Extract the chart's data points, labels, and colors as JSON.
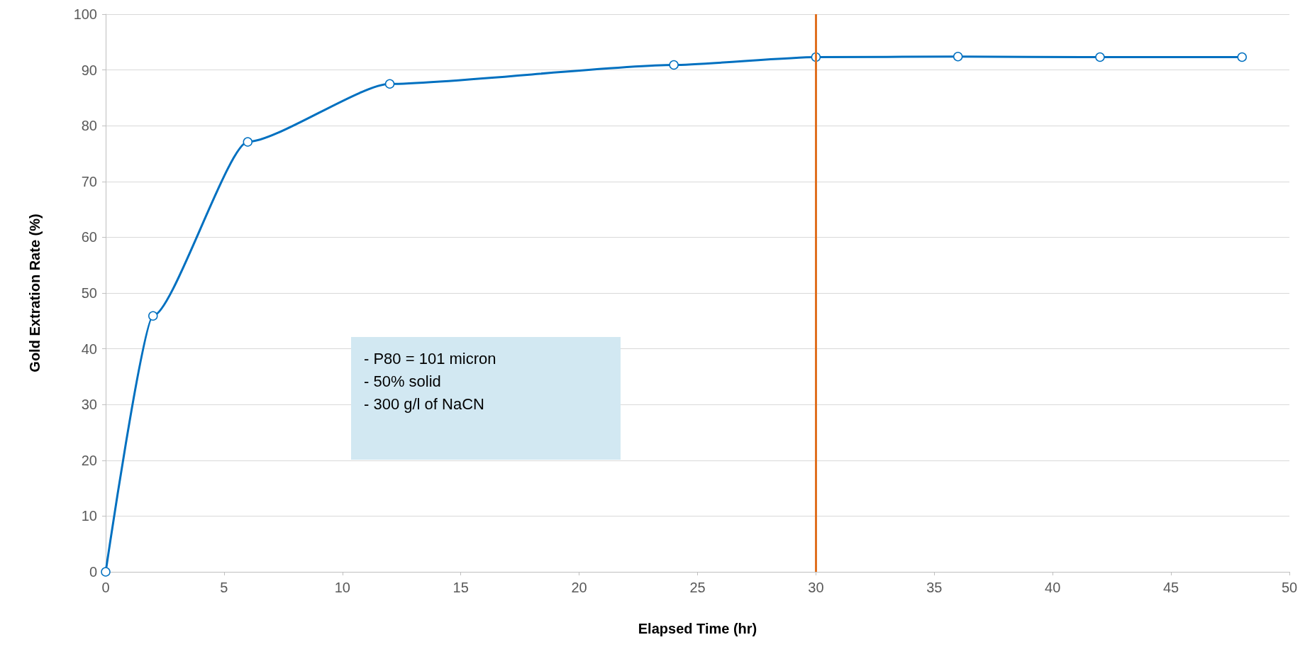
{
  "chart_data": {
    "type": "line",
    "xlabel": "Elapsed Time (hr)",
    "ylabel": "Gold Extration Rate (%)",
    "x": [
      0,
      2,
      6,
      12,
      24,
      30,
      36,
      42,
      48
    ],
    "series": [
      {
        "color": "#0070c0",
        "values": [
          0,
          45.9,
          77.1,
          87.5,
          90.9,
          92.3,
          92.4,
          92.3,
          92.3
        ]
      }
    ],
    "xlim": [
      0,
      50
    ],
    "xticks": [
      0,
      5,
      10,
      15,
      20,
      25,
      30,
      35,
      40,
      45,
      50
    ],
    "ylim": [
      0,
      100
    ],
    "yticks": [
      0,
      10,
      20,
      30,
      40,
      50,
      60,
      70,
      80,
      90,
      100
    ],
    "grid": "y",
    "marker": "circle",
    "line_style": "solid",
    "ref_lines": [
      {
        "axis": "x",
        "value": 30,
        "color": "#e07020"
      }
    ],
    "annotations": [
      "- P80 = 101 micron\n- 50% solid\n- 300 g/l of NaCN"
    ]
  }
}
